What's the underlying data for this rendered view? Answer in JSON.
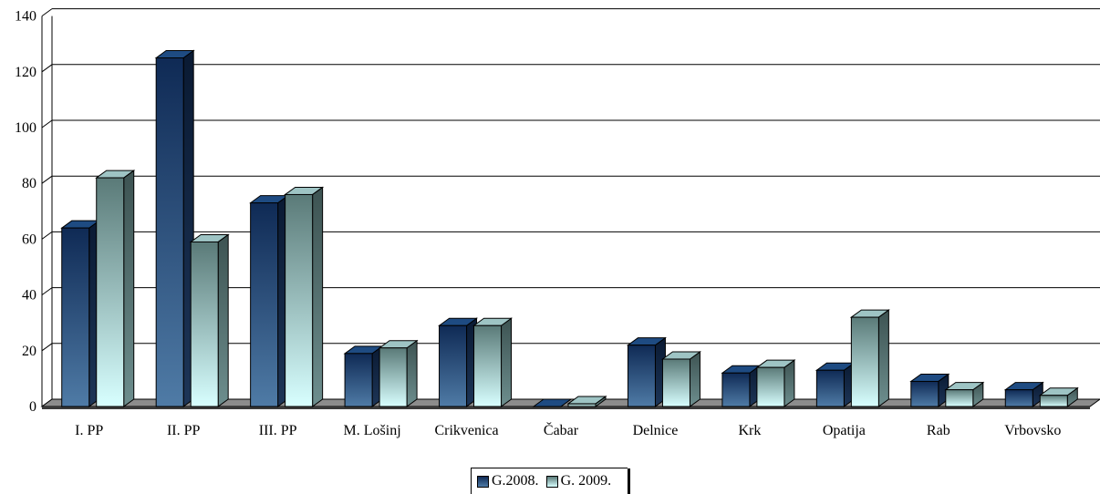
{
  "chart_data": {
    "type": "bar",
    "categories": [
      "I. PP",
      "II. PP",
      "III. PP",
      "M. Lošinj",
      "Crikvenica",
      "Čabar",
      "Delnice",
      "Krk",
      "Opatija",
      "Rab",
      "Vrbovsko"
    ],
    "series": [
      {
        "name": "G.2008.",
        "values": [
          64,
          125,
          73,
          19,
          29,
          0,
          22,
          12,
          13,
          9,
          6
        ],
        "color": "#17375e"
      },
      {
        "name": "G. 2009.",
        "values": [
          82,
          59,
          76,
          21,
          29,
          1,
          17,
          14,
          32,
          6,
          4
        ],
        "color": "#7fa6a6"
      }
    ],
    "y_ticks": [
      "0",
      "20",
      "40",
      "60",
      "80",
      "100",
      "120",
      "140"
    ],
    "ylim": [
      0,
      140
    ],
    "grid": true,
    "legend_position": "bottom"
  },
  "legend": {
    "series1": "G.2008.",
    "series2": "G. 2009."
  }
}
